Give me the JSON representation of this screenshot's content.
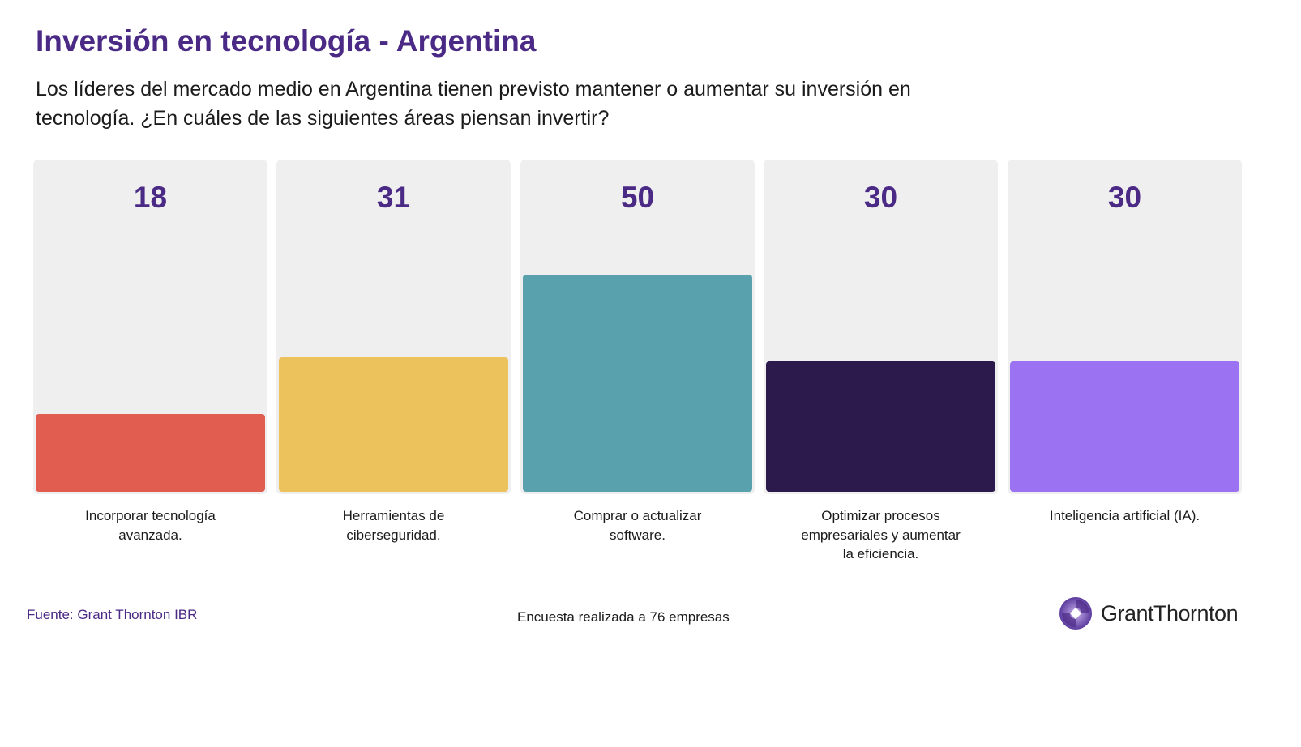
{
  "chart_data": {
    "type": "bar",
    "title": "Inversión en tecnología - Argentina",
    "subtitle": "Los líderes del mercado medio en Argentina tienen previsto mantener o aumentar su inversión en tecnología. ¿En cuáles de las siguientes áreas piensan invertir?",
    "categories": [
      "Incorporar tecnología avanzada.",
      "Herramientas de ciberseguridad.",
      "Comprar o actualizar software.",
      "Optimizar procesos empresariales y aumentar la eficiencia.",
      "Inteligencia artificial (IA)."
    ],
    "values": [
      18,
      31,
      50,
      30,
      30
    ],
    "value_labels": [
      "18",
      "31",
      "50",
      "30",
      "30"
    ],
    "colors": [
      "#e05d50",
      "#ebc25c",
      "#5aa1ae",
      "#2b1a4b",
      "#9b72f2"
    ],
    "ylim": [
      0,
      76
    ],
    "xlabel": "",
    "ylabel": "",
    "grid": false,
    "legend": "none"
  },
  "footer": {
    "source": "Fuente: Grant Thornton IBR",
    "note": "Encuesta realizada a 76 empresas",
    "logo": "GrantThornton"
  }
}
